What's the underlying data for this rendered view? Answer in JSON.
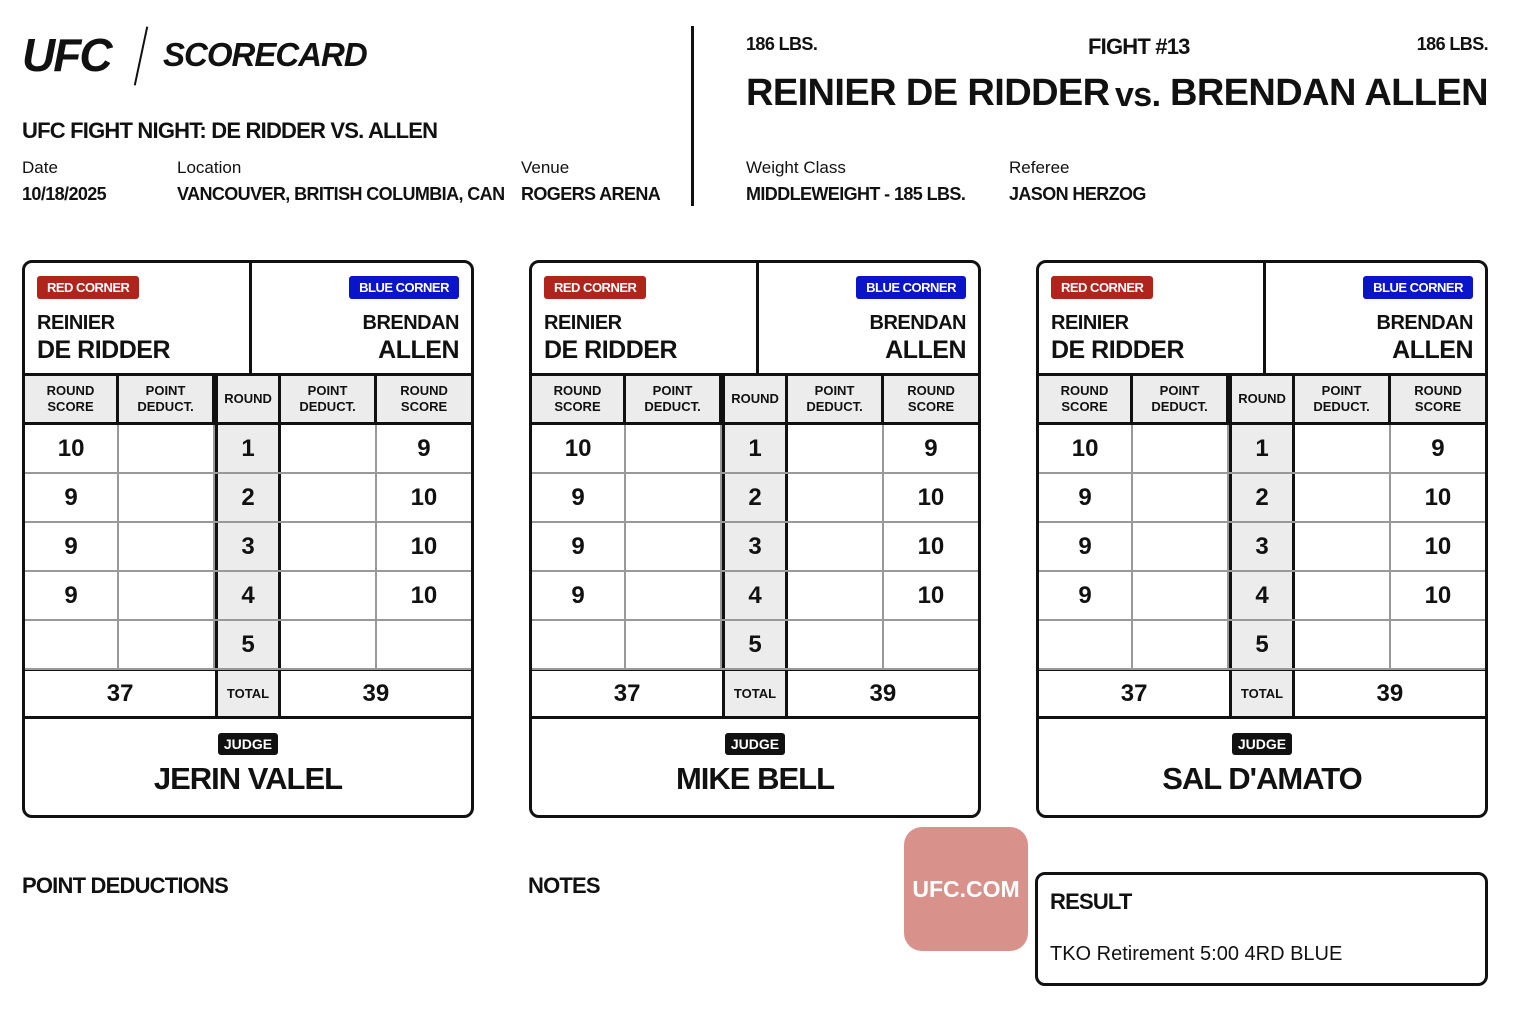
{
  "header": {
    "logo": "UFC",
    "subtitle": "SCORECARD",
    "event": "UFC FIGHT NIGHT: DE RIDDER VS. ALLEN",
    "date_label": "Date",
    "date": "10/18/2025",
    "location_label": "Location",
    "location": "VANCOUVER, BRITISH COLUMBIA, CAN",
    "venue_label": "Venue",
    "venue": "ROGERS ARENA"
  },
  "fight": {
    "red_weight": "186 LBS.",
    "blue_weight": "186 LBS.",
    "number": "FIGHT #13",
    "red": "REINIER DE RIDDER",
    "vs": "vs.",
    "blue": "BRENDAN ALLEN",
    "weight_class_label": "Weight Class",
    "weight_class": "MIDDLEWEIGHT - 185 LBS.",
    "referee_label": "Referee",
    "referee": "JASON HERZOG"
  },
  "card_labels": {
    "red_corner": "RED CORNER",
    "blue_corner": "BLUE CORNER",
    "red_first": "REINIER",
    "red_last": "DE RIDDER",
    "blue_first": "BRENDAN",
    "blue_last": "ALLEN",
    "cols": [
      "ROUND SCORE",
      "POINT DEDUCT.",
      "ROUND",
      "POINT DEDUCT.",
      "ROUND SCORE"
    ],
    "total": "TOTAL",
    "judge": "JUDGE"
  },
  "colors": {
    "red": "#b0241c",
    "blue": "#0a14c8"
  },
  "cards": [
    {
      "judge": "JERIN VALEL",
      "rounds": [
        {
          "r": "1",
          "red": "10",
          "blue": "9"
        },
        {
          "r": "2",
          "red": "9",
          "blue": "10"
        },
        {
          "r": "3",
          "red": "9",
          "blue": "10"
        },
        {
          "r": "4",
          "red": "9",
          "blue": "10"
        },
        {
          "r": "5",
          "red": "",
          "blue": ""
        }
      ],
      "red_total": "37",
      "blue_total": "39"
    },
    {
      "judge": "MIKE BELL",
      "rounds": [
        {
          "r": "1",
          "red": "10",
          "blue": "9"
        },
        {
          "r": "2",
          "red": "9",
          "blue": "10"
        },
        {
          "r": "3",
          "red": "9",
          "blue": "10"
        },
        {
          "r": "4",
          "red": "9",
          "blue": "10"
        },
        {
          "r": "5",
          "red": "",
          "blue": ""
        }
      ],
      "red_total": "37",
      "blue_total": "39"
    },
    {
      "judge": "SAL D'AMATO",
      "rounds": [
        {
          "r": "1",
          "red": "10",
          "blue": "9"
        },
        {
          "r": "2",
          "red": "9",
          "blue": "10"
        },
        {
          "r": "3",
          "red": "9",
          "blue": "10"
        },
        {
          "r": "4",
          "red": "9",
          "blue": "10"
        },
        {
          "r": "5",
          "red": "",
          "blue": ""
        }
      ],
      "red_total": "37",
      "blue_total": "39"
    }
  ],
  "footer": {
    "point_deductions": "POINT DEDUCTIONS",
    "notes": "NOTES",
    "watermark": "UFC.COM",
    "result_label": "RESULT",
    "result": "TKO Retirement 5:00 4RD BLUE"
  }
}
